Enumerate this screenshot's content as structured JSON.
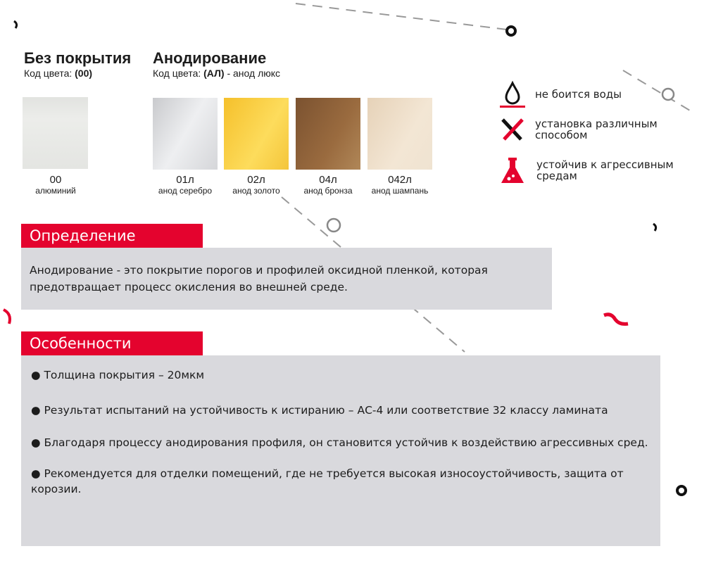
{
  "no_coating": {
    "title": "Без покрытия",
    "code_label": "Код цвета:",
    "code": "(00)",
    "swatch": {
      "code": "00",
      "name": "алюминий",
      "color": "#e6e7e4"
    }
  },
  "anodizing": {
    "title": "Анодирование",
    "code_label": "Код цвета:",
    "code": "(АЛ)",
    "code_suffix": " - анод люкс",
    "swatches": [
      {
        "code": "01л",
        "name": "анод серебро",
        "color": "#dcdde0"
      },
      {
        "code": "02л",
        "name": "анод золото",
        "color": "#f7c93a"
      },
      {
        "code": "04л",
        "name": "анод бронза",
        "color": "#8f6238"
      },
      {
        "code": "042л",
        "name": "анод шампань",
        "color": "#eddcc5"
      }
    ]
  },
  "features": [
    {
      "icon": "water-drop-icon",
      "text": "не боится воды"
    },
    {
      "icon": "tools-icon",
      "text": "установка различным способом"
    },
    {
      "icon": "flask-icon",
      "text": "устойчив к агрессивным средам"
    }
  ],
  "definition": {
    "title": "Определение",
    "text": "Анодирование - это покрытие порогов и профилей оксидной пленкой, которая предотвращает процесс окисления во внешней среде."
  },
  "specs": {
    "title": "Особенности",
    "items": [
      "● Толщина покрытия – 20мкм",
      "●  Результат испытаний на устойчивость к истиранию – АС-4 или соответствие 32 классу ламината",
      "●  Благодаря процессу анодирования профиля, он становится устойчив к воздействию агрессивных сред.",
      "● Рекомендуется для отделки помещений,  где не требуется высокая износоустойчивость, защита от корозии."
    ]
  },
  "colors": {
    "accent": "#e4032e",
    "panel": "#d9d9dd"
  }
}
